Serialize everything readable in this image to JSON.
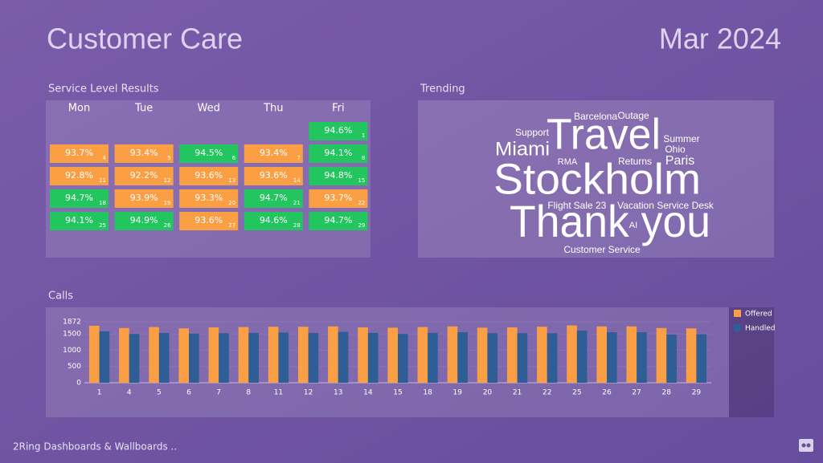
{
  "header": {
    "title": "Customer Care",
    "period": "Mar 2024"
  },
  "service_level": {
    "title": "Service Level Results",
    "days": [
      "Mon",
      "Tue",
      "Wed",
      "Thu",
      "Fri"
    ],
    "weeks": [
      [
        null,
        null,
        null,
        null,
        {
          "value": "94.6%",
          "day": "1",
          "color": "#22c55e"
        }
      ],
      [
        {
          "value": "93.7%",
          "day": "4",
          "color": "#fb9f45"
        },
        {
          "value": "93.4%",
          "day": "5",
          "color": "#fb9f45"
        },
        {
          "value": "94.5%",
          "day": "6",
          "color": "#22c55e"
        },
        {
          "value": "93.4%",
          "day": "7",
          "color": "#fb9f45"
        },
        {
          "value": "94.1%",
          "day": "8",
          "color": "#22c55e"
        }
      ],
      [
        {
          "value": "92.8%",
          "day": "11",
          "color": "#fb9f45"
        },
        {
          "value": "92.2%",
          "day": "12",
          "color": "#fb9f45"
        },
        {
          "value": "93.6%",
          "day": "13",
          "color": "#fb9f45"
        },
        {
          "value": "93.6%",
          "day": "14",
          "color": "#fb9f45"
        },
        {
          "value": "94.8%",
          "day": "15",
          "color": "#22c55e"
        }
      ],
      [
        {
          "value": "94.7%",
          "day": "18",
          "color": "#22c55e"
        },
        {
          "value": "93.9%",
          "day": "19",
          "color": "#fb9f45"
        },
        {
          "value": "93.3%",
          "day": "20",
          "color": "#fb9f45"
        },
        {
          "value": "94.7%",
          "day": "21",
          "color": "#22c55e"
        },
        {
          "value": "93.7%",
          "day": "22",
          "color": "#fb9f45"
        }
      ],
      [
        {
          "value": "94.1%",
          "day": "25",
          "color": "#22c55e"
        },
        {
          "value": "94.9%",
          "day": "26",
          "color": "#22c55e"
        },
        {
          "value": "93.6%",
          "day": "27",
          "color": "#fb9f45"
        },
        {
          "value": "94.6%",
          "day": "28",
          "color": "#22c55e"
        },
        {
          "value": "94.7%",
          "day": "29",
          "color": "#22c55e"
        }
      ]
    ]
  },
  "trending": {
    "title": "Trending",
    "words": [
      "Barcelona",
      "Outage",
      "Support",
      "Travel",
      "Summer",
      "Miami",
      "Ohio",
      "RMA",
      "Returns",
      "Paris",
      "Stockholm",
      "Flight",
      "Sale 23",
      "Vacation Service Desk",
      "Thank you",
      "AI",
      "Customer Service"
    ]
  },
  "chart_data": {
    "type": "bar",
    "title": "Calls",
    "categories": [
      "1",
      "4",
      "5",
      "6",
      "7",
      "8",
      "11",
      "12",
      "13",
      "14",
      "15",
      "18",
      "19",
      "20",
      "21",
      "22",
      "25",
      "26",
      "27",
      "28",
      "29"
    ],
    "series": [
      {
        "name": "Offered",
        "color": "#fb9f45",
        "values": [
          1750,
          1680,
          1710,
          1670,
          1700,
          1710,
          1720,
          1720,
          1730,
          1700,
          1690,
          1710,
          1730,
          1690,
          1700,
          1720,
          1760,
          1730,
          1730,
          1680,
          1670
        ]
      },
      {
        "name": "Handled",
        "color": "#2f5e97",
        "values": [
          1580,
          1500,
          1530,
          1510,
          1520,
          1530,
          1540,
          1530,
          1560,
          1530,
          1500,
          1530,
          1550,
          1520,
          1520,
          1520,
          1600,
          1550,
          1550,
          1480,
          1490
        ]
      }
    ],
    "ylim": [
      0,
      1872
    ],
    "yticks": [
      0,
      500,
      1000,
      1500,
      1872
    ],
    "legend": "right"
  },
  "footer": {
    "brand": "2Ring Dashboards & Wallboards .."
  }
}
